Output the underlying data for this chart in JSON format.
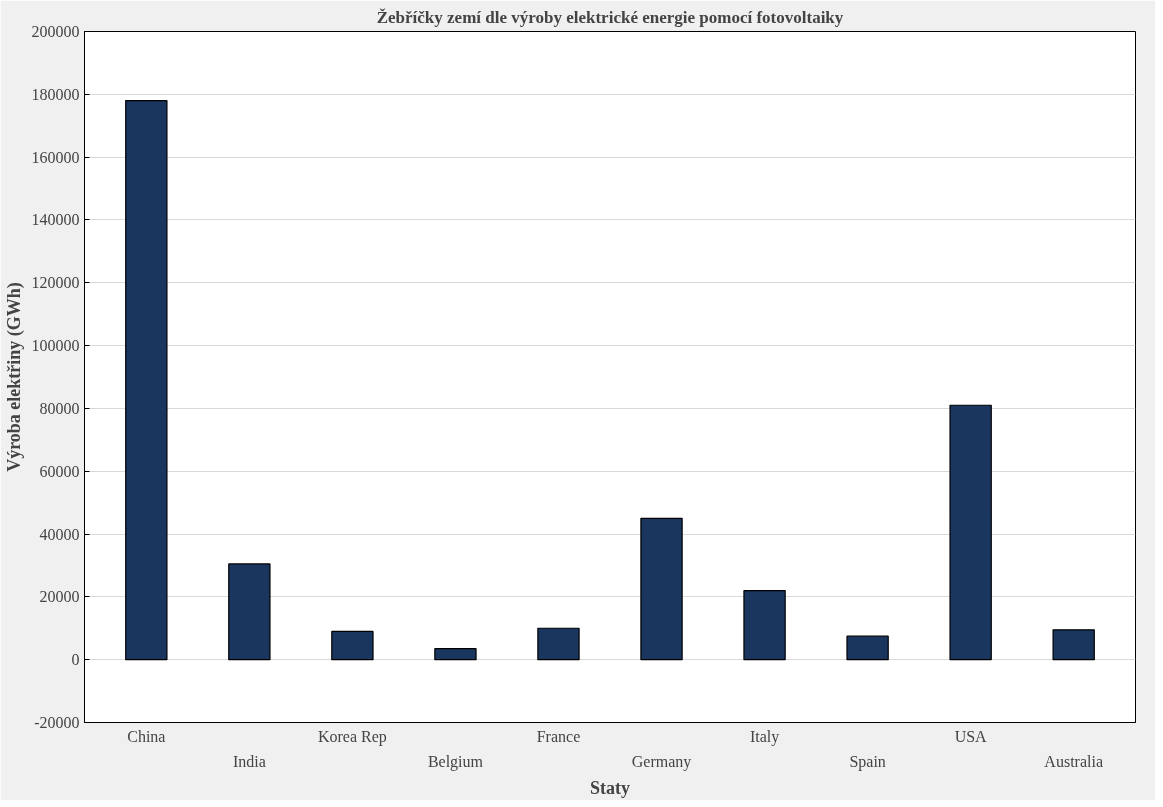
{
  "chart_data": {
    "type": "bar",
    "title": "Žebříčky zemí dle výroby elektrické energie pomocí fotovoltaiky",
    "xlabel": "Staty",
    "ylabel": "Výroba elektřiny (GWh)",
    "categories": [
      "China",
      "India",
      "Korea Rep",
      "Belgium",
      "France",
      "Germany",
      "Italy",
      "Spain",
      "USA",
      "Australia"
    ],
    "values": [
      178000,
      30500,
      9000,
      3500,
      10000,
      45000,
      22000,
      7500,
      81000,
      9500
    ],
    "color": "#1a365f",
    "ylim": [
      -20000,
      200000
    ],
    "yticks": [
      -20000,
      0,
      20000,
      40000,
      60000,
      80000,
      100000,
      120000,
      140000,
      160000,
      180000,
      200000
    ],
    "grid": "y"
  }
}
